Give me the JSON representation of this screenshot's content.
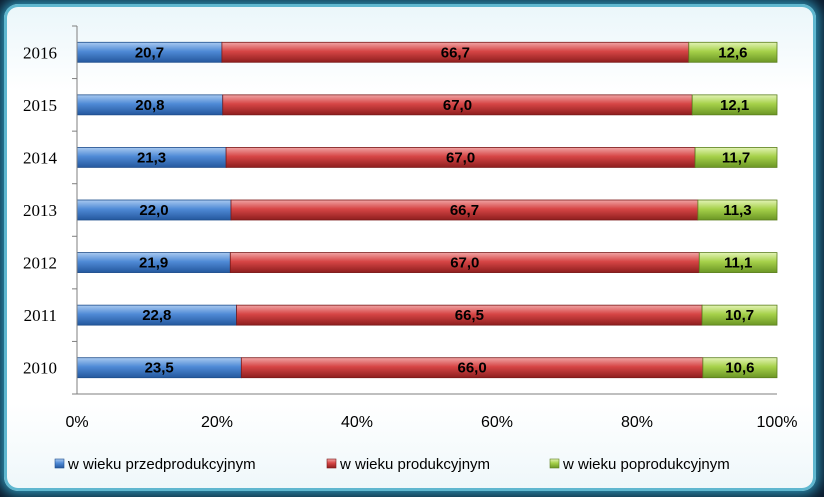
{
  "colors": {
    "series1": "#3a78c9",
    "series2": "#cc3333",
    "series3": "#99cc33"
  },
  "chart_data": {
    "type": "bar",
    "orientation": "horizontal",
    "stacked": "percent",
    "categories": [
      "2016",
      "2015",
      "2014",
      "2013",
      "2012",
      "2011",
      "2010"
    ],
    "series": [
      {
        "name": "w wieku przedprodukcyjnym",
        "values": [
          20.7,
          20.8,
          21.3,
          22.0,
          21.9,
          22.8,
          23.5
        ],
        "labels": [
          "20,7",
          "20,8",
          "21,3",
          "22,0",
          "21,9",
          "22,8",
          "23,5"
        ]
      },
      {
        "name": "w wieku produkcyjnym",
        "values": [
          66.7,
          67.0,
          67.0,
          66.7,
          67.0,
          66.5,
          66.0
        ],
        "labels": [
          "66,7",
          "67,0",
          "67,0",
          "66,7",
          "67,0",
          "66,5",
          "66,0"
        ]
      },
      {
        "name": "w wieku poprodukcyjnym",
        "values": [
          12.6,
          12.1,
          11.7,
          11.3,
          11.1,
          10.7,
          10.6
        ],
        "labels": [
          "12,6",
          "12,1",
          "11,7",
          "11,3",
          "11,1",
          "10,7",
          "10,6"
        ]
      }
    ],
    "xticks": [
      "0%",
      "20%",
      "40%",
      "60%",
      "80%",
      "100%"
    ],
    "xlim": [
      0,
      100
    ],
    "legend_position": "bottom",
    "grid": false
  }
}
